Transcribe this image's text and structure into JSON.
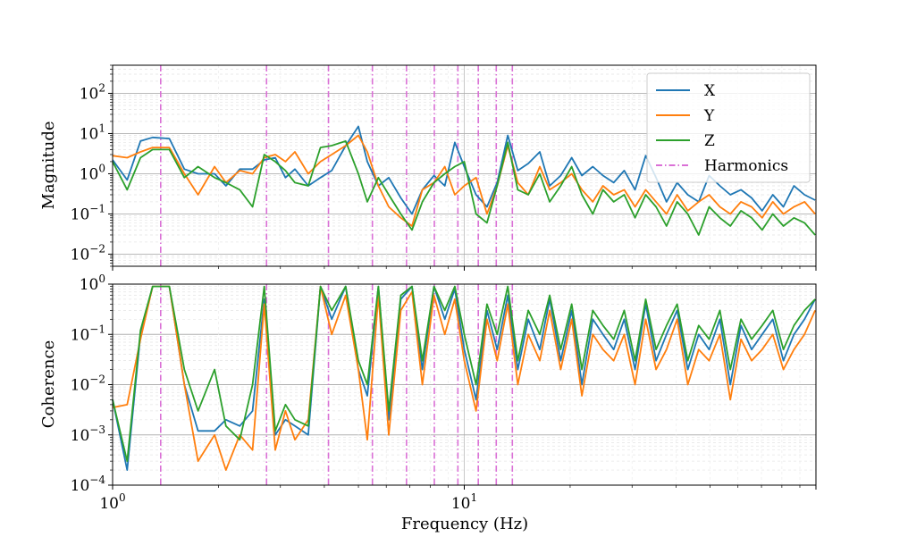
{
  "chart_data": [
    {
      "type": "line",
      "ylabel": "Magnitude",
      "yscale": "log",
      "xscale": "log",
      "xlim": [
        1,
        100
      ],
      "ylim": [
        0.005,
        500
      ],
      "y_ticks": [
        {
          "value": 0.01,
          "mant": "10",
          "exp": "−2"
        },
        {
          "value": 0.1,
          "mant": "10",
          "exp": "−1"
        },
        {
          "value": 1,
          "mant": "10",
          "exp": "0"
        },
        {
          "value": 10,
          "mant": "10",
          "exp": "1"
        },
        {
          "value": 100,
          "mant": "10",
          "exp": "2"
        }
      ],
      "grid": true,
      "legend_position": "top-right",
      "legend": [
        "X",
        "Y",
        "Z",
        "Harmonics"
      ],
      "series": [
        {
          "name": "X",
          "color": "#1f77b4",
          "x": [
            1.0,
            1.1,
            1.2,
            1.3,
            1.45,
            1.6,
            1.75,
            1.95,
            2.1,
            2.3,
            2.5,
            2.7,
            2.9,
            3.1,
            3.3,
            3.6,
            3.9,
            4.2,
            4.6,
            5.0,
            5.3,
            5.7,
            6.1,
            6.6,
            7.1,
            7.6,
            8.2,
            8.8,
            9.4,
            10.0,
            10.8,
            11.6,
            12.4,
            13.3,
            14.2,
            15.2,
            16.4,
            17.5,
            18.8,
            20.2,
            21.6,
            23.2,
            24.8,
            26.6,
            28.5,
            30.6,
            32.8,
            35.1,
            37.6,
            40.3,
            43.2,
            46.4,
            49.7,
            53.3,
            57.1,
            61.2,
            65.6,
            70.3,
            75.4,
            80.8,
            86.6,
            92.8,
            99.5
          ],
          "y": [
            2.2,
            0.7,
            6.5,
            8.0,
            7.5,
            1.3,
            1.0,
            1.0,
            0.5,
            1.3,
            1.3,
            2.2,
            2.5,
            0.8,
            1.3,
            0.5,
            0.8,
            1.2,
            5.0,
            15.0,
            2.0,
            0.5,
            0.8,
            0.25,
            0.1,
            0.4,
            0.9,
            0.5,
            6.0,
            1.5,
            0.3,
            0.15,
            0.6,
            9.0,
            1.2,
            1.8,
            3.5,
            0.5,
            0.9,
            2.5,
            0.9,
            1.5,
            0.9,
            0.6,
            1.2,
            0.4,
            2.8,
            0.8,
            0.2,
            0.6,
            0.3,
            0.2,
            0.9,
            0.5,
            0.3,
            0.4,
            0.25,
            0.12,
            0.3,
            0.15,
            0.5,
            0.3,
            0.22
          ]
        },
        {
          "name": "Y",
          "color": "#ff7f0e",
          "x": [
            1.0,
            1.1,
            1.2,
            1.3,
            1.45,
            1.6,
            1.75,
            1.95,
            2.1,
            2.3,
            2.5,
            2.7,
            2.9,
            3.1,
            3.3,
            3.6,
            3.9,
            4.2,
            4.6,
            5.0,
            5.3,
            5.7,
            6.1,
            6.6,
            7.1,
            7.6,
            8.2,
            8.8,
            9.4,
            10.0,
            10.8,
            11.6,
            12.4,
            13.3,
            14.2,
            15.2,
            16.4,
            17.5,
            18.8,
            20.2,
            21.6,
            23.2,
            24.8,
            26.6,
            28.5,
            30.6,
            32.8,
            35.1,
            37.6,
            40.3,
            43.2,
            46.4,
            49.7,
            53.3,
            57.1,
            61.2,
            65.6,
            70.3,
            75.4,
            80.8,
            86.6,
            92.8,
            99.5
          ],
          "y": [
            2.8,
            2.5,
            3.5,
            4.5,
            4.5,
            1.0,
            0.3,
            1.5,
            0.6,
            1.2,
            1.0,
            2.5,
            3.0,
            2.0,
            3.5,
            1.0,
            2.0,
            3.0,
            5.0,
            9.0,
            3.5,
            0.5,
            0.15,
            0.08,
            0.05,
            0.4,
            0.6,
            1.5,
            0.3,
            0.5,
            0.8,
            0.1,
            0.5,
            5.0,
            0.6,
            0.3,
            1.5,
            0.4,
            0.6,
            1.0,
            0.4,
            0.2,
            0.5,
            0.3,
            0.4,
            0.15,
            0.4,
            0.2,
            0.1,
            0.3,
            0.12,
            0.2,
            0.3,
            0.15,
            0.1,
            0.2,
            0.15,
            0.08,
            0.2,
            0.1,
            0.15,
            0.2,
            0.1
          ]
        },
        {
          "name": "Z",
          "color": "#2ca02c",
          "x": [
            1.0,
            1.1,
            1.2,
            1.3,
            1.45,
            1.6,
            1.75,
            1.95,
            2.1,
            2.3,
            2.5,
            2.7,
            2.9,
            3.1,
            3.3,
            3.6,
            3.9,
            4.2,
            4.6,
            5.0,
            5.3,
            5.7,
            6.1,
            6.6,
            7.1,
            7.6,
            8.2,
            8.8,
            9.4,
            10.0,
            10.8,
            11.6,
            12.4,
            13.3,
            14.2,
            15.2,
            16.4,
            17.5,
            18.8,
            20.2,
            21.6,
            23.2,
            24.8,
            26.6,
            28.5,
            30.6,
            32.8,
            35.1,
            37.6,
            40.3,
            43.2,
            46.4,
            49.7,
            53.3,
            57.1,
            61.2,
            65.6,
            70.3,
            75.4,
            80.8,
            86.6,
            92.8,
            99.5
          ],
          "y": [
            2.0,
            0.4,
            2.5,
            4.0,
            4.0,
            0.8,
            1.5,
            0.8,
            0.6,
            0.4,
            0.15,
            3.0,
            2.0,
            1.2,
            0.6,
            0.5,
            4.5,
            5.0,
            6.5,
            1.0,
            0.2,
            0.8,
            0.3,
            0.1,
            0.04,
            0.2,
            0.6,
            1.0,
            1.5,
            2.0,
            0.1,
            0.06,
            0.5,
            6.0,
            0.4,
            0.3,
            1.0,
            0.2,
            0.5,
            1.5,
            0.3,
            0.1,
            0.4,
            0.2,
            0.3,
            0.08,
            0.3,
            0.15,
            0.05,
            0.2,
            0.1,
            0.03,
            0.15,
            0.08,
            0.05,
            0.12,
            0.08,
            0.04,
            0.1,
            0.05,
            0.08,
            0.06,
            0.03
          ]
        }
      ],
      "harmonics_x": [
        1.37,
        2.74,
        4.11,
        5.48,
        6.85,
        8.22,
        9.59,
        10.96,
        12.33,
        13.7
      ]
    },
    {
      "type": "line",
      "xlabel": "Frequency (Hz)",
      "ylabel": "Coherence",
      "yscale": "log",
      "xscale": "log",
      "xlim": [
        1,
        100
      ],
      "ylim": [
        0.0001,
        1
      ],
      "x_ticks": [
        {
          "value": 1,
          "mant": "10",
          "exp": "0"
        },
        {
          "value": 10,
          "mant": "10",
          "exp": "1"
        }
      ],
      "y_ticks": [
        {
          "value": 0.0001,
          "mant": "10",
          "exp": "−4"
        },
        {
          "value": 0.001,
          "mant": "10",
          "exp": "−3"
        },
        {
          "value": 0.01,
          "mant": "10",
          "exp": "−2"
        },
        {
          "value": 0.1,
          "mant": "10",
          "exp": "−1"
        },
        {
          "value": 1,
          "mant": "10",
          "exp": "0"
        }
      ],
      "grid": true,
      "series": [
        {
          "name": "X",
          "color": "#1f77b4",
          "x": [
            1.0,
            1.1,
            1.2,
            1.3,
            1.45,
            1.6,
            1.75,
            1.95,
            2.1,
            2.3,
            2.5,
            2.7,
            2.9,
            3.1,
            3.3,
            3.6,
            3.9,
            4.2,
            4.6,
            5.0,
            5.3,
            5.7,
            6.1,
            6.6,
            7.1,
            7.6,
            8.2,
            8.8,
            9.4,
            10.0,
            10.8,
            11.6,
            12.4,
            13.3,
            14.2,
            15.2,
            16.4,
            17.5,
            18.8,
            20.2,
            21.6,
            23.2,
            24.8,
            26.6,
            28.5,
            30.6,
            32.8,
            35.1,
            37.6,
            40.3,
            43.2,
            46.4,
            49.7,
            53.3,
            57.1,
            61.2,
            65.6,
            70.3,
            75.4,
            80.8,
            86.6,
            92.8,
            99.5
          ],
          "y": [
            0.005,
            0.0002,
            0.1,
            0.9,
            0.9,
            0.01,
            0.0012,
            0.0012,
            0.002,
            0.0015,
            0.003,
            0.5,
            0.001,
            0.002,
            0.0015,
            0.001,
            0.9,
            0.2,
            0.9,
            0.02,
            0.006,
            0.9,
            0.002,
            0.5,
            0.9,
            0.02,
            0.9,
            0.2,
            0.8,
            0.05,
            0.005,
            0.3,
            0.05,
            0.6,
            0.02,
            0.2,
            0.05,
            0.5,
            0.03,
            0.3,
            0.01,
            0.2,
            0.1,
            0.05,
            0.2,
            0.02,
            0.4,
            0.03,
            0.1,
            0.3,
            0.02,
            0.1,
            0.05,
            0.2,
            0.01,
            0.15,
            0.05,
            0.1,
            0.2,
            0.03,
            0.1,
            0.2,
            0.5
          ]
        },
        {
          "name": "Y",
          "color": "#ff7f0e",
          "x": [
            1.0,
            1.1,
            1.2,
            1.3,
            1.45,
            1.6,
            1.75,
            1.95,
            2.1,
            2.3,
            2.5,
            2.7,
            2.9,
            3.1,
            3.3,
            3.6,
            3.9,
            4.2,
            4.6,
            5.0,
            5.3,
            5.7,
            6.1,
            6.6,
            7.1,
            7.6,
            8.2,
            8.8,
            9.4,
            10.0,
            10.8,
            11.6,
            12.4,
            13.3,
            14.2,
            15.2,
            16.4,
            17.5,
            18.8,
            20.2,
            21.6,
            23.2,
            24.8,
            26.6,
            28.5,
            30.6,
            32.8,
            35.1,
            37.6,
            40.3,
            43.2,
            46.4,
            49.7,
            53.3,
            57.1,
            61.2,
            65.6,
            70.3,
            75.4,
            80.8,
            86.6,
            92.8,
            99.5
          ],
          "y": [
            0.0035,
            0.004,
            0.08,
            0.9,
            0.9,
            0.01,
            0.0003,
            0.001,
            0.0002,
            0.001,
            0.0005,
            0.4,
            0.0005,
            0.003,
            0.0008,
            0.002,
            0.9,
            0.1,
            0.6,
            0.02,
            0.0008,
            0.6,
            0.001,
            0.3,
            0.7,
            0.01,
            0.6,
            0.1,
            0.5,
            0.03,
            0.003,
            0.2,
            0.03,
            0.4,
            0.01,
            0.1,
            0.03,
            0.3,
            0.02,
            0.2,
            0.006,
            0.1,
            0.05,
            0.03,
            0.1,
            0.01,
            0.2,
            0.02,
            0.05,
            0.2,
            0.01,
            0.05,
            0.03,
            0.1,
            0.005,
            0.08,
            0.03,
            0.05,
            0.1,
            0.02,
            0.05,
            0.1,
            0.3
          ]
        },
        {
          "name": "Z",
          "color": "#2ca02c",
          "x": [
            1.0,
            1.1,
            1.2,
            1.3,
            1.45,
            1.6,
            1.75,
            1.95,
            2.1,
            2.3,
            2.5,
            2.7,
            2.9,
            3.1,
            3.3,
            3.6,
            3.9,
            4.2,
            4.6,
            5.0,
            5.3,
            5.7,
            6.1,
            6.6,
            7.1,
            7.6,
            8.2,
            8.8,
            9.4,
            10.0,
            10.8,
            11.6,
            12.4,
            13.3,
            14.2,
            15.2,
            16.4,
            17.5,
            18.8,
            20.2,
            21.6,
            23.2,
            24.8,
            26.6,
            28.5,
            30.6,
            32.8,
            35.1,
            37.6,
            40.3,
            43.2,
            46.4,
            49.7,
            53.3,
            57.1,
            61.2,
            65.6,
            70.3,
            75.4,
            80.8,
            86.6,
            92.8,
            99.5
          ],
          "y": [
            0.005,
            0.0003,
            0.12,
            0.9,
            0.9,
            0.02,
            0.003,
            0.02,
            0.0015,
            0.0008,
            0.01,
            0.9,
            0.0012,
            0.004,
            0.002,
            0.0015,
            0.9,
            0.3,
            0.9,
            0.03,
            0.01,
            0.9,
            0.003,
            0.6,
            0.9,
            0.03,
            0.9,
            0.3,
            0.9,
            0.1,
            0.01,
            0.4,
            0.1,
            0.9,
            0.03,
            0.3,
            0.1,
            0.6,
            0.05,
            0.4,
            0.02,
            0.3,
            0.15,
            0.08,
            0.3,
            0.03,
            0.5,
            0.05,
            0.15,
            0.4,
            0.03,
            0.15,
            0.08,
            0.3,
            0.02,
            0.2,
            0.08,
            0.15,
            0.3,
            0.05,
            0.15,
            0.3,
            0.5
          ]
        }
      ],
      "harmonics_x": [
        1.37,
        2.74,
        4.11,
        5.48,
        6.85,
        8.22,
        9.59,
        10.96,
        12.33,
        13.7
      ]
    }
  ],
  "legend": {
    "items": [
      {
        "label": "X",
        "color": "#1f77b4",
        "style": "solid"
      },
      {
        "label": "Y",
        "color": "#ff7f0e",
        "style": "solid"
      },
      {
        "label": "Z",
        "color": "#2ca02c",
        "style": "solid"
      },
      {
        "label": "Harmonics",
        "color": "#da70d6",
        "style": "dashdot"
      }
    ]
  },
  "colors": {
    "harmonics": "#da70d6"
  }
}
